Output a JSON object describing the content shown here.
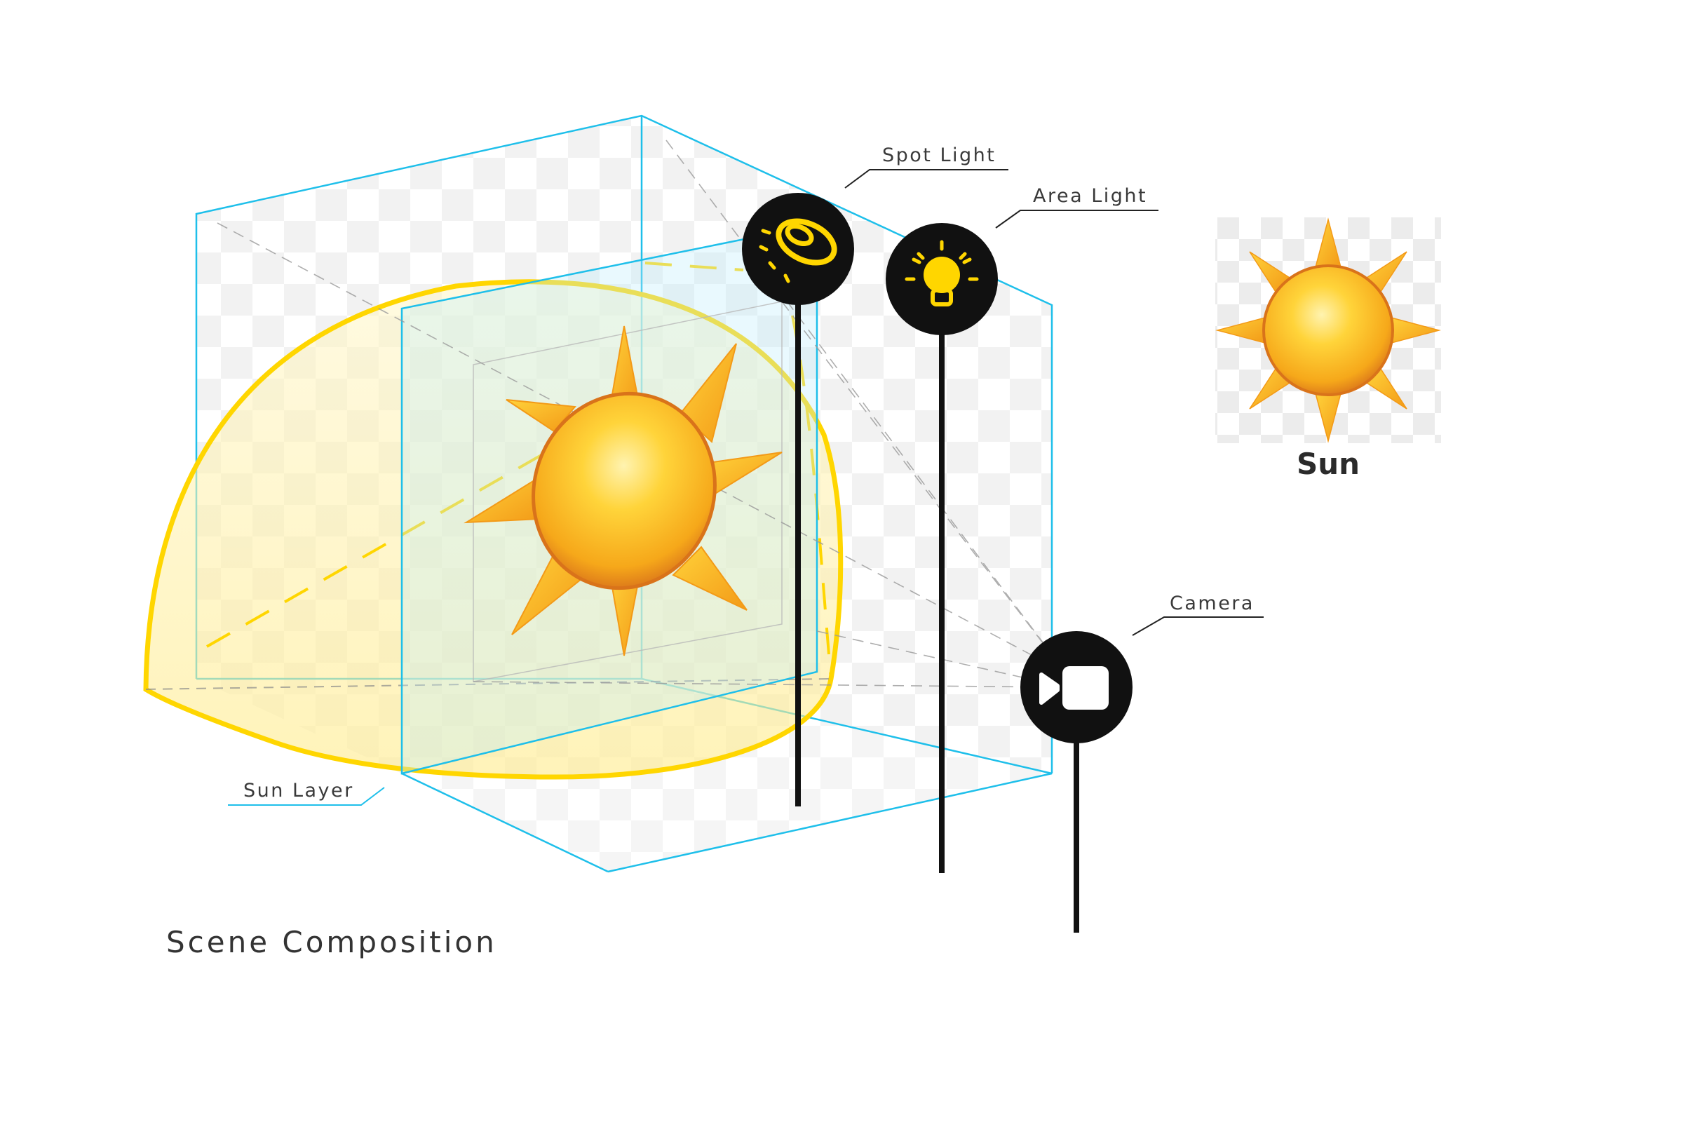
{
  "labels": {
    "spot_light": "Spot Light",
    "area_light": "Area Light",
    "camera": "Camera",
    "sun_layer": "Sun Layer"
  },
  "sun_preview": {
    "caption": "Sun"
  },
  "title": "Scene Composition",
  "colors": {
    "cube_edge": "#1EBFEA",
    "sun_layer_outline": "#FFD600",
    "sun_rays": "#F6A81A",
    "sun_body": "#FFC21A",
    "icon_bg": "#111111",
    "icon_glyph": "#FFD600",
    "checker": "#EDEDED"
  },
  "icons": [
    "spot-light-icon",
    "area-light-icon",
    "camera-icon",
    "sun-icon"
  ]
}
